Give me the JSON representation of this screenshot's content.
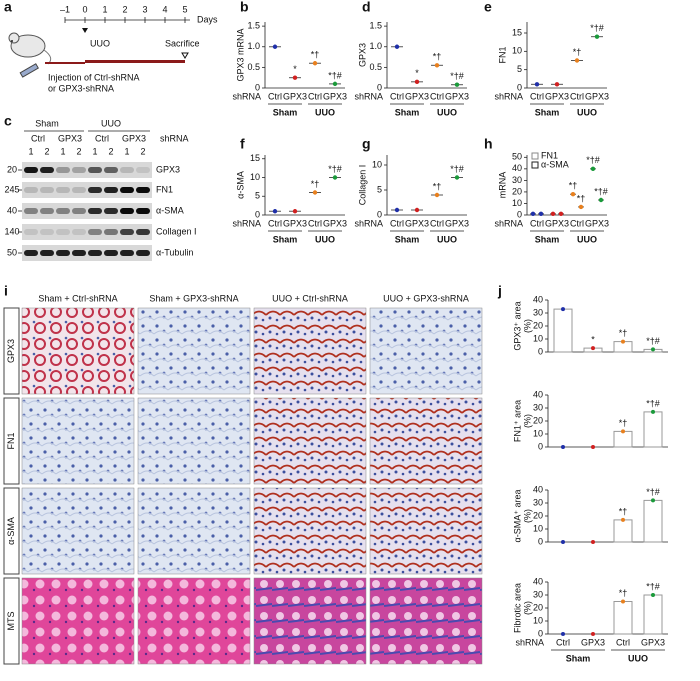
{
  "panel_letters": [
    "a",
    "b",
    "c",
    "d",
    "e",
    "f",
    "g",
    "h",
    "i",
    "j"
  ],
  "panel_a": {
    "days": [
      "–1",
      "0",
      "1",
      "2",
      "3",
      "4",
      "5"
    ],
    "days_label": "Days",
    "event1": "UUO",
    "event2": "Sacrifice",
    "injection": [
      "Injection of Ctrl-shRNA",
      "or GPX3-shRNA"
    ]
  },
  "panel_c": {
    "groups": [
      "Sham",
      "UUO"
    ],
    "shrna": [
      "Ctrl",
      "GPX3",
      "Ctrl",
      "GPX3"
    ],
    "shrna_label": "shRNA",
    "lanes": [
      "1",
      "2",
      "1",
      "2",
      "1",
      "2",
      "1",
      "2"
    ],
    "markers": [
      "20",
      "245",
      "40",
      "140",
      "50"
    ],
    "proteins": [
      "GPX3",
      "FN1",
      "α-SMA",
      "Collagen I",
      "α-Tubulin"
    ]
  },
  "panel_i": {
    "columns": [
      "Sham + Ctrl-shRNA",
      "Sham + GPX3-shRNA",
      "UUO + Ctrl-shRNA",
      "UUO + GPX3-shRNA"
    ],
    "rows": [
      "GPX3",
      "FN1",
      "α-SMA",
      "MTS"
    ]
  },
  "chart_data": [
    {
      "type": "dot",
      "ylabel": "GPX3 mRNA",
      "x_title": "shRNA",
      "categories": [
        "Ctrl",
        "GPX3",
        "Ctrl",
        "GPX3"
      ],
      "groups": [
        "Sham",
        "UUO"
      ],
      "colors": [
        "#1f2fa8",
        "#d02020",
        "#e8801e",
        "#1a9a3a"
      ],
      "values": [
        1.0,
        0.25,
        0.6,
        0.1
      ],
      "annotations": [
        null,
        "*",
        "*†",
        "*†#"
      ],
      "ylim": [
        0,
        1.6
      ],
      "yticks": [
        0,
        0.5,
        {
          "value": 1.0,
          "label": "1.0"
        },
        1.5
      ]
    },
    {
      "type": "dot",
      "ylabel": "GPX3",
      "x_title": "shRNA",
      "categories": [
        "Ctrl",
        "GPX3",
        "Ctrl",
        "GPX3"
      ],
      "groups": [
        "Sham",
        "UUO"
      ],
      "colors": [
        "#1f2fa8",
        "#d02020",
        "#e8801e",
        "#1a9a3a"
      ],
      "values": [
        1.0,
        0.15,
        0.55,
        0.08
      ],
      "annotations": [
        null,
        "*",
        "*†",
        "*†#"
      ],
      "ylim": [
        0,
        1.6
      ],
      "yticks": [
        0,
        0.5,
        {
          "value": 1.0,
          "label": "1.0"
        },
        1.5
      ]
    },
    {
      "type": "dot",
      "ylabel": "FN1",
      "x_title": "shRNA",
      "categories": [
        "Ctrl",
        "GPX3",
        "Ctrl",
        "GPX3"
      ],
      "groups": [
        "Sham",
        "UUO"
      ],
      "colors": [
        "#1f2fa8",
        "#d02020",
        "#e8801e",
        "#1a9a3a"
      ],
      "values": [
        1,
        1,
        7.5,
        14
      ],
      "annotations": [
        null,
        null,
        "*†",
        "*†#"
      ],
      "ylim": [
        0,
        18
      ],
      "yticks": [
        0,
        5,
        10,
        15
      ]
    },
    {
      "type": "dot",
      "ylabel": "α-SMA",
      "x_title": "shRNA",
      "categories": [
        "Ctrl",
        "GPX3",
        "Ctrl",
        "GPX3"
      ],
      "groups": [
        "Sham",
        "UUO"
      ],
      "colors": [
        "#1f2fa8",
        "#d02020",
        "#e8801e",
        "#1a9a3a"
      ],
      "values": [
        1,
        1,
        6,
        10
      ],
      "annotations": [
        null,
        null,
        "*†",
        "*†#"
      ],
      "ylim": [
        0,
        16
      ],
      "yticks": [
        0,
        5,
        10,
        15
      ]
    },
    {
      "type": "dot",
      "ylabel": "Collagen I",
      "x_title": "shRNA",
      "categories": [
        "Ctrl",
        "GPX3",
        "Ctrl",
        "GPX3"
      ],
      "groups": [
        "Sham",
        "UUO"
      ],
      "colors": [
        "#1f2fa8",
        "#d02020",
        "#e8801e",
        "#1a9a3a"
      ],
      "values": [
        1,
        1,
        4,
        7.5
      ],
      "annotations": [
        null,
        null,
        "*†",
        "*†#"
      ],
      "ylim": [
        0,
        12
      ],
      "yticks": [
        0,
        5,
        10
      ]
    },
    {
      "type": "dot",
      "ylabel": "mRNA",
      "x_title": "shRNA",
      "categories": [
        "Ctrl",
        "GPX3",
        "Ctrl",
        "GPX3"
      ],
      "groups": [
        "Sham",
        "UUO"
      ],
      "colors": [
        "#1f2fa8",
        "#d02020",
        "#e8801e",
        "#1a9a3a"
      ],
      "series": [
        {
          "name": "FN1",
          "color": "#888888",
          "values": [
            1,
            1,
            18,
            40
          ],
          "annotations": [
            null,
            null,
            "*†",
            "*†#"
          ]
        },
        {
          "name": "α-SMA",
          "color": "#222222",
          "values": [
            1,
            1,
            7,
            13
          ],
          "annotations": [
            null,
            null,
            "*†",
            "*†#"
          ]
        }
      ],
      "ylim": [
        0,
        52
      ],
      "yticks": [
        0,
        10,
        20,
        30,
        40,
        50
      ]
    },
    {
      "type": "bar",
      "ylabel": "GPX3⁺ area",
      "yunit": "(%)",
      "colors": [
        "#1f2fa8",
        "#d02020",
        "#e8801e",
        "#1a9a3a"
      ],
      "values": [
        33,
        3,
        8,
        2
      ],
      "annotations": [
        null,
        "*",
        "*†",
        "*†#"
      ],
      "ylim": [
        0,
        40
      ],
      "yticks": [
        0,
        10,
        20,
        30,
        40
      ]
    },
    {
      "type": "bar",
      "ylabel": "FN1⁺ area",
      "yunit": "(%)",
      "colors": [
        "#1f2fa8",
        "#d02020",
        "#e8801e",
        "#1a9a3a"
      ],
      "values": [
        0,
        0,
        12,
        27
      ],
      "annotations": [
        null,
        null,
        "*†",
        "*†#"
      ],
      "ylim": [
        0,
        40
      ],
      "yticks": [
        0,
        10,
        20,
        30,
        40
      ]
    },
    {
      "type": "bar",
      "ylabel": "α-SMA⁺ area",
      "yunit": "(%)",
      "colors": [
        "#1f2fa8",
        "#d02020",
        "#e8801e",
        "#1a9a3a"
      ],
      "values": [
        0,
        0,
        17,
        32
      ],
      "annotations": [
        null,
        null,
        "*†",
        "*†#"
      ],
      "ylim": [
        0,
        40
      ],
      "yticks": [
        0,
        10,
        20,
        30,
        40
      ]
    },
    {
      "type": "bar",
      "ylabel": "Fibrotic area",
      "yunit": "(%)",
      "x_title": "shRNA",
      "categories": [
        "Ctrl",
        "GPX3",
        "Ctrl",
        "GPX3"
      ],
      "groups": [
        "Sham",
        "UUO"
      ],
      "colors": [
        "#1f2fa8",
        "#d02020",
        "#e8801e",
        "#1a9a3a"
      ],
      "values": [
        0,
        0,
        25,
        30
      ],
      "annotations": [
        null,
        null,
        "*†",
        "*†#"
      ],
      "ylim": [
        0,
        40
      ],
      "yticks": [
        0,
        10,
        20,
        30,
        40
      ]
    }
  ]
}
